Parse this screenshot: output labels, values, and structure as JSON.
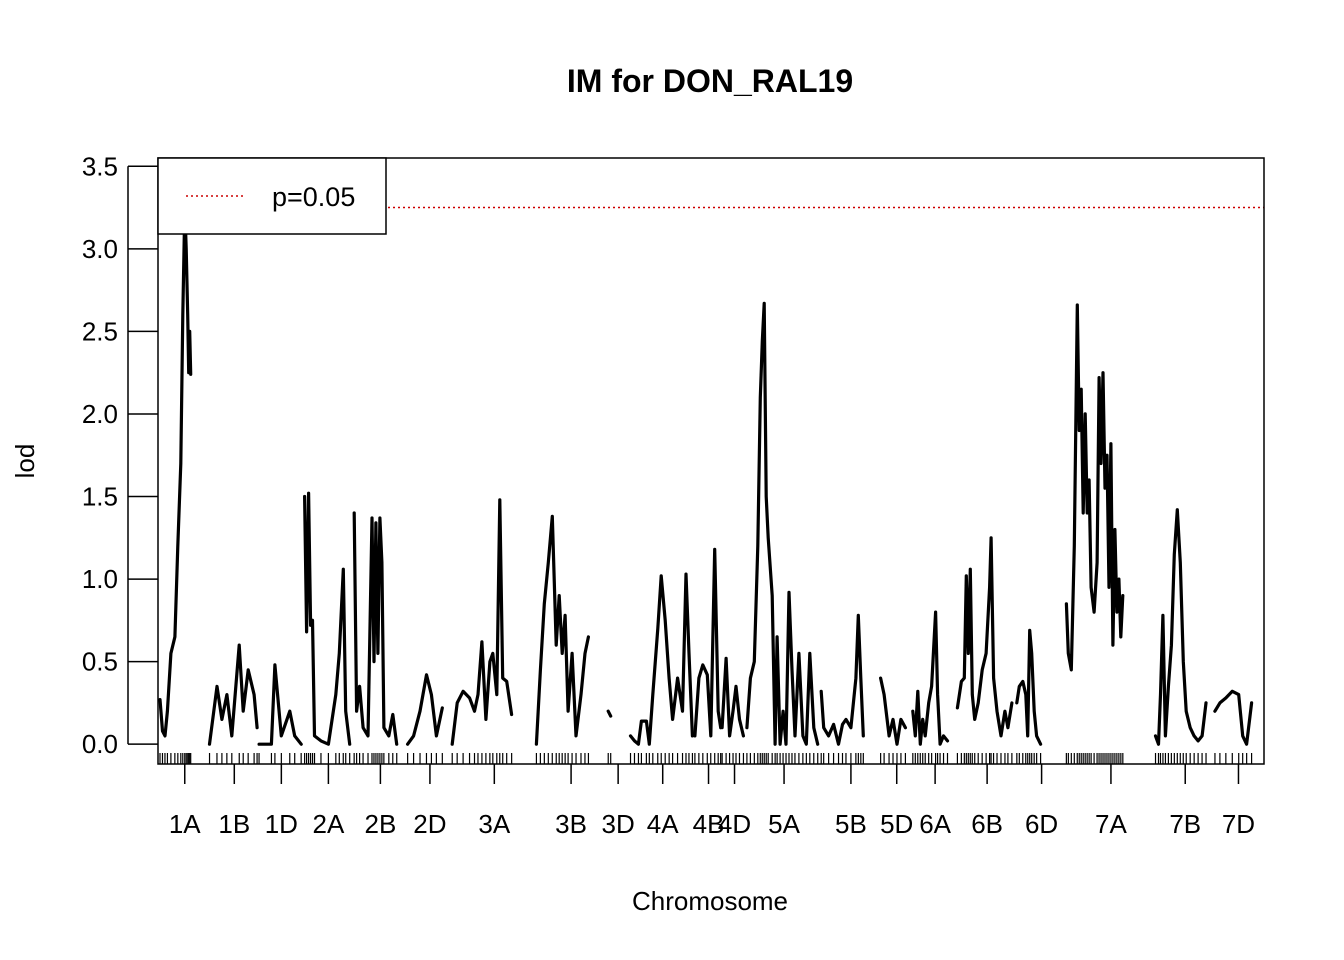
{
  "chart_data": {
    "type": "line",
    "title": "IM for DON_RAL19",
    "xlabel": "Chromosome",
    "ylabel": "lod",
    "ylim": [
      -0.12,
      3.55
    ],
    "yticks": [
      "0.0",
      "0.5",
      "1.0",
      "1.5",
      "2.0",
      "2.5",
      "3.0",
      "3.5"
    ],
    "yticks_values": [
      0,
      0.5,
      1.0,
      1.5,
      2.0,
      2.5,
      3.0,
      3.5
    ],
    "legend": {
      "position": "top-left",
      "label": "p=0.05",
      "color": "#cc0000",
      "style": "dotted"
    },
    "threshold": {
      "label": "p=0.05",
      "value": 3.25,
      "color": "#cc0000"
    },
    "line_color": "#000000",
    "chromosomes": [
      {
        "name": "1A",
        "start": 0,
        "end": 100,
        "points": [
          [
            0,
            0.27
          ],
          [
            5,
            0.08
          ],
          [
            10,
            0.05
          ],
          [
            15,
            0.2
          ],
          [
            22,
            0.55
          ],
          [
            30,
            0.65
          ],
          [
            36,
            1.2
          ],
          [
            42,
            1.7
          ],
          [
            46,
            2.6
          ],
          [
            50,
            3.25
          ],
          [
            53,
            3.0
          ],
          [
            56,
            2.6
          ],
          [
            58,
            2.25
          ],
          [
            60,
            2.5
          ],
          [
            62,
            2.24
          ]
        ]
      },
      {
        "name": "1B",
        "start": 100,
        "end": 200,
        "points": [
          [
            100,
            0.0
          ],
          [
            115,
            0.35
          ],
          [
            125,
            0.15
          ],
          [
            135,
            0.3
          ],
          [
            145,
            0.05
          ],
          [
            160,
            0.6
          ],
          [
            168,
            0.2
          ],
          [
            178,
            0.45
          ],
          [
            190,
            0.3
          ],
          [
            196,
            0.1
          ]
        ]
      },
      {
        "name": "1D",
        "start": 200,
        "end": 290,
        "points": [
          [
            200,
            0.0
          ],
          [
            225,
            0.0
          ],
          [
            232,
            0.48
          ],
          [
            245,
            0.05
          ],
          [
            262,
            0.2
          ],
          [
            272,
            0.05
          ],
          [
            285,
            0.0
          ]
        ]
      },
      {
        "name": "2A",
        "start": 290,
        "end": 390,
        "points": [
          [
            292,
            1.5
          ],
          [
            296,
            0.68
          ],
          [
            300,
            1.52
          ],
          [
            304,
            0.72
          ],
          [
            308,
            0.75
          ],
          [
            312,
            0.05
          ],
          [
            325,
            0.02
          ],
          [
            340,
            0.0
          ],
          [
            355,
            0.3
          ],
          [
            362,
            0.55
          ],
          [
            370,
            1.06
          ],
          [
            375,
            0.2
          ],
          [
            383,
            0.0
          ]
        ]
      },
      {
        "name": "2B",
        "start": 390,
        "end": 500,
        "points": [
          [
            392,
            1.4
          ],
          [
            397,
            0.2
          ],
          [
            403,
            0.35
          ],
          [
            410,
            0.1
          ],
          [
            420,
            0.05
          ],
          [
            428,
            1.37
          ],
          [
            432,
            0.5
          ],
          [
            436,
            1.34
          ],
          [
            440,
            0.55
          ],
          [
            444,
            1.37
          ],
          [
            448,
            1.1
          ],
          [
            452,
            0.1
          ],
          [
            462,
            0.05
          ],
          [
            470,
            0.18
          ],
          [
            478,
            0.0
          ]
        ]
      },
      {
        "name": "2D",
        "start": 500,
        "end": 590,
        "points": [
          [
            500,
            0.0
          ],
          [
            512,
            0.05
          ],
          [
            525,
            0.2
          ],
          [
            538,
            0.42
          ],
          [
            548,
            0.3
          ],
          [
            558,
            0.05
          ],
          [
            570,
            0.22
          ]
        ]
      },
      {
        "name": "3A",
        "start": 590,
        "end": 760,
        "points": [
          [
            590,
            0.0
          ],
          [
            600,
            0.25
          ],
          [
            612,
            0.32
          ],
          [
            625,
            0.28
          ],
          [
            635,
            0.2
          ],
          [
            642,
            0.3
          ],
          [
            650,
            0.62
          ],
          [
            658,
            0.15
          ],
          [
            666,
            0.5
          ],
          [
            672,
            0.55
          ],
          [
            680,
            0.3
          ],
          [
            686,
            1.48
          ],
          [
            692,
            0.4
          ],
          [
            700,
            0.38
          ],
          [
            710,
            0.18
          ]
        ]
      },
      {
        "name": "3B",
        "start": 760,
        "end": 900,
        "points": [
          [
            760,
            0.0
          ],
          [
            768,
            0.45
          ],
          [
            776,
            0.85
          ],
          [
            784,
            1.1
          ],
          [
            792,
            1.38
          ],
          [
            800,
            0.6
          ],
          [
            806,
            0.9
          ],
          [
            812,
            0.55
          ],
          [
            818,
            0.78
          ],
          [
            824,
            0.2
          ],
          [
            832,
            0.55
          ],
          [
            840,
            0.05
          ],
          [
            850,
            0.3
          ],
          [
            858,
            0.55
          ],
          [
            865,
            0.65
          ]
        ]
      },
      {
        "name": "3D",
        "start": 900,
        "end": 950,
        "points": [
          [
            905,
            0.2
          ],
          [
            910,
            0.17
          ]
        ]
      },
      {
        "name": "4A",
        "start": 950,
        "end": 1080,
        "points": [
          [
            950,
            0.05
          ],
          [
            958,
            0.02
          ],
          [
            966,
            0.0
          ],
          [
            972,
            0.14
          ],
          [
            982,
            0.14
          ],
          [
            988,
            0.0
          ],
          [
            995,
            0.3
          ],
          [
            1005,
            0.7
          ],
          [
            1012,
            1.02
          ],
          [
            1020,
            0.75
          ],
          [
            1028,
            0.4
          ],
          [
            1035,
            0.15
          ],
          [
            1045,
            0.4
          ],
          [
            1055,
            0.2
          ],
          [
            1062,
            1.03
          ],
          [
            1068,
            0.55
          ],
          [
            1075,
            0.05
          ]
        ]
      },
      {
        "name": "4B",
        "start": 1080,
        "end": 1135,
        "points": [
          [
            1080,
            0.05
          ],
          [
            1088,
            0.4
          ],
          [
            1096,
            0.48
          ],
          [
            1105,
            0.42
          ],
          [
            1112,
            0.05
          ],
          [
            1120,
            1.18
          ],
          [
            1127,
            0.2
          ],
          [
            1132,
            0.1
          ]
        ]
      },
      {
        "name": "4D",
        "start": 1135,
        "end": 1185,
        "points": [
          [
            1135,
            0.1
          ],
          [
            1143,
            0.52
          ],
          [
            1150,
            0.05
          ],
          [
            1157,
            0.2
          ],
          [
            1163,
            0.35
          ],
          [
            1170,
            0.15
          ],
          [
            1178,
            0.05
          ]
        ]
      },
      {
        "name": "5A",
        "start": 1185,
        "end": 1335,
        "points": [
          [
            1185,
            0.1
          ],
          [
            1192,
            0.4
          ],
          [
            1200,
            0.5
          ],
          [
            1207,
            1.2
          ],
          [
            1212,
            2.1
          ],
          [
            1216,
            2.44
          ],
          [
            1220,
            2.67
          ],
          [
            1224,
            1.5
          ],
          [
            1228,
            1.25
          ],
          [
            1236,
            0.9
          ],
          [
            1242,
            0.0
          ],
          [
            1246,
            0.65
          ],
          [
            1252,
            0.0
          ],
          [
            1258,
            0.2
          ],
          [
            1264,
            0.0
          ],
          [
            1270,
            0.92
          ],
          [
            1276,
            0.45
          ],
          [
            1282,
            0.05
          ],
          [
            1290,
            0.55
          ],
          [
            1298,
            0.05
          ],
          [
            1305,
            0.0
          ],
          [
            1312,
            0.55
          ],
          [
            1320,
            0.1
          ],
          [
            1328,
            0.0
          ]
        ]
      },
      {
        "name": "5B",
        "start": 1335,
        "end": 1455,
        "points": [
          [
            1335,
            0.32
          ],
          [
            1340,
            0.1
          ],
          [
            1350,
            0.05
          ],
          [
            1360,
            0.12
          ],
          [
            1370,
            0.0
          ],
          [
            1378,
            0.12
          ],
          [
            1385,
            0.15
          ],
          [
            1395,
            0.1
          ],
          [
            1405,
            0.4
          ],
          [
            1410,
            0.78
          ],
          [
            1415,
            0.4
          ],
          [
            1420,
            0.05
          ]
        ]
      },
      {
        "name": "5D",
        "start": 1455,
        "end": 1520,
        "points": [
          [
            1455,
            0.4
          ],
          [
            1462,
            0.3
          ],
          [
            1472,
            0.05
          ],
          [
            1480,
            0.15
          ],
          [
            1488,
            0.0
          ],
          [
            1496,
            0.15
          ],
          [
            1505,
            0.1
          ]
        ]
      },
      {
        "name": "6A",
        "start": 1520,
        "end": 1610,
        "points": [
          [
            1520,
            0.2
          ],
          [
            1525,
            0.05
          ],
          [
            1530,
            0.32
          ],
          [
            1535,
            0.0
          ],
          [
            1540,
            0.15
          ],
          [
            1545,
            0.05
          ],
          [
            1552,
            0.25
          ],
          [
            1558,
            0.35
          ],
          [
            1566,
            0.8
          ],
          [
            1570,
            0.3
          ],
          [
            1575,
            0.0
          ],
          [
            1582,
            0.05
          ],
          [
            1590,
            0.02
          ]
        ]
      },
      {
        "name": "6B",
        "start": 1610,
        "end": 1730,
        "points": [
          [
            1610,
            0.22
          ],
          [
            1618,
            0.38
          ],
          [
            1624,
            0.4
          ],
          [
            1628,
            1.02
          ],
          [
            1632,
            0.55
          ],
          [
            1636,
            1.06
          ],
          [
            1640,
            0.3
          ],
          [
            1645,
            0.15
          ],
          [
            1652,
            0.25
          ],
          [
            1660,
            0.45
          ],
          [
            1668,
            0.55
          ],
          [
            1675,
            0.95
          ],
          [
            1678,
            1.25
          ],
          [
            1683,
            0.4
          ],
          [
            1690,
            0.2
          ],
          [
            1698,
            0.05
          ],
          [
            1706,
            0.2
          ],
          [
            1712,
            0.1
          ],
          [
            1720,
            0.25
          ]
        ]
      },
      {
        "name": "6D",
        "start": 1730,
        "end": 1830,
        "points": [
          [
            1730,
            0.25
          ],
          [
            1735,
            0.35
          ],
          [
            1742,
            0.38
          ],
          [
            1748,
            0.3
          ],
          [
            1752,
            0.05
          ],
          [
            1756,
            0.69
          ],
          [
            1760,
            0.55
          ],
          [
            1765,
            0.2
          ],
          [
            1770,
            0.05
          ],
          [
            1778,
            0.0
          ]
        ]
      },
      {
        "name": "7A",
        "start": 1830,
        "end": 2010,
        "points": [
          [
            1830,
            0.85
          ],
          [
            1834,
            0.55
          ],
          [
            1840,
            0.45
          ],
          [
            1846,
            1.2
          ],
          [
            1852,
            2.66
          ],
          [
            1856,
            1.9
          ],
          [
            1860,
            2.15
          ],
          [
            1864,
            1.4
          ],
          [
            1868,
            2.0
          ],
          [
            1872,
            1.4
          ],
          [
            1876,
            1.6
          ],
          [
            1880,
            0.95
          ],
          [
            1886,
            0.8
          ],
          [
            1892,
            1.1
          ],
          [
            1896,
            2.22
          ],
          [
            1900,
            1.7
          ],
          [
            1904,
            2.25
          ],
          [
            1908,
            1.55
          ],
          [
            1912,
            1.75
          ],
          [
            1916,
            0.95
          ],
          [
            1920,
            1.82
          ],
          [
            1924,
            0.6
          ],
          [
            1928,
            1.3
          ],
          [
            1932,
            0.8
          ],
          [
            1936,
            1.0
          ],
          [
            1940,
            0.65
          ],
          [
            1944,
            0.9
          ]
        ]
      },
      {
        "name": "7B",
        "start": 2010,
        "end": 2130,
        "points": [
          [
            2010,
            0.05
          ],
          [
            2016,
            0.0
          ],
          [
            2020,
            0.3
          ],
          [
            2025,
            0.78
          ],
          [
            2030,
            0.05
          ],
          [
            2036,
            0.35
          ],
          [
            2042,
            0.6
          ],
          [
            2048,
            1.15
          ],
          [
            2054,
            1.42
          ],
          [
            2060,
            1.1
          ],
          [
            2066,
            0.5
          ],
          [
            2072,
            0.2
          ],
          [
            2080,
            0.1
          ],
          [
            2088,
            0.05
          ],
          [
            2096,
            0.02
          ],
          [
            2104,
            0.05
          ],
          [
            2112,
            0.25
          ]
        ]
      },
      {
        "name": "7D",
        "start": 2130,
        "end": 2225,
        "points": [
          [
            2130,
            0.2
          ],
          [
            2140,
            0.25
          ],
          [
            2152,
            0.28
          ],
          [
            2165,
            0.32
          ],
          [
            2178,
            0.3
          ],
          [
            2186,
            0.05
          ],
          [
            2194,
            0.0
          ],
          [
            2204,
            0.25
          ]
        ]
      }
    ]
  }
}
